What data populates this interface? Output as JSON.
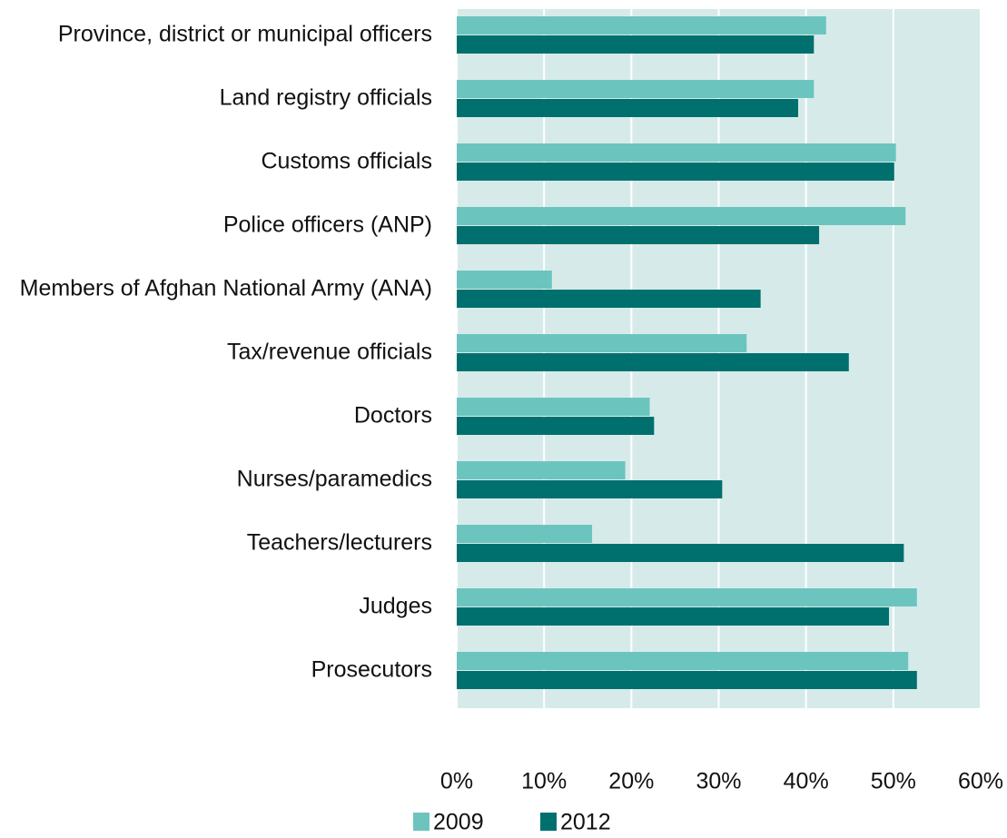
{
  "chart_data": {
    "type": "barh",
    "categories": [
      "Province, district or municipal officers",
      "Land registry officials",
      "Customs officials",
      "Police officers (ANP)",
      "Members of Afghan National Army (ANA)",
      "Tax/revenue officials",
      "Doctors",
      "Nurses/paramedics",
      "Teachers/lecturers",
      "Judges",
      "Prosecutors"
    ],
    "series": [
      {
        "name": "2009",
        "color": "#6cc4bf",
        "values": [
          42.3,
          40.9,
          50.3,
          51.4,
          10.9,
          33.2,
          22.1,
          19.3,
          15.5,
          52.7,
          51.7
        ]
      },
      {
        "name": "2012",
        "color": "#00706e",
        "values": [
          40.9,
          39.1,
          50.1,
          41.5,
          34.8,
          44.9,
          22.6,
          30.4,
          51.2,
          49.5,
          52.7
        ]
      }
    ],
    "xlim": [
      0,
      60
    ],
    "xticks": [
      {
        "value": 0,
        "label": "0%"
      },
      {
        "value": 10,
        "label": "10%"
      },
      {
        "value": 20,
        "label": "20%"
      },
      {
        "value": 30,
        "label": "30%"
      },
      {
        "value": 40,
        "label": "40%"
      },
      {
        "value": 50,
        "label": "50%"
      },
      {
        "value": 60,
        "label": "60%"
      }
    ],
    "grid": true,
    "legend": "bottom"
  }
}
